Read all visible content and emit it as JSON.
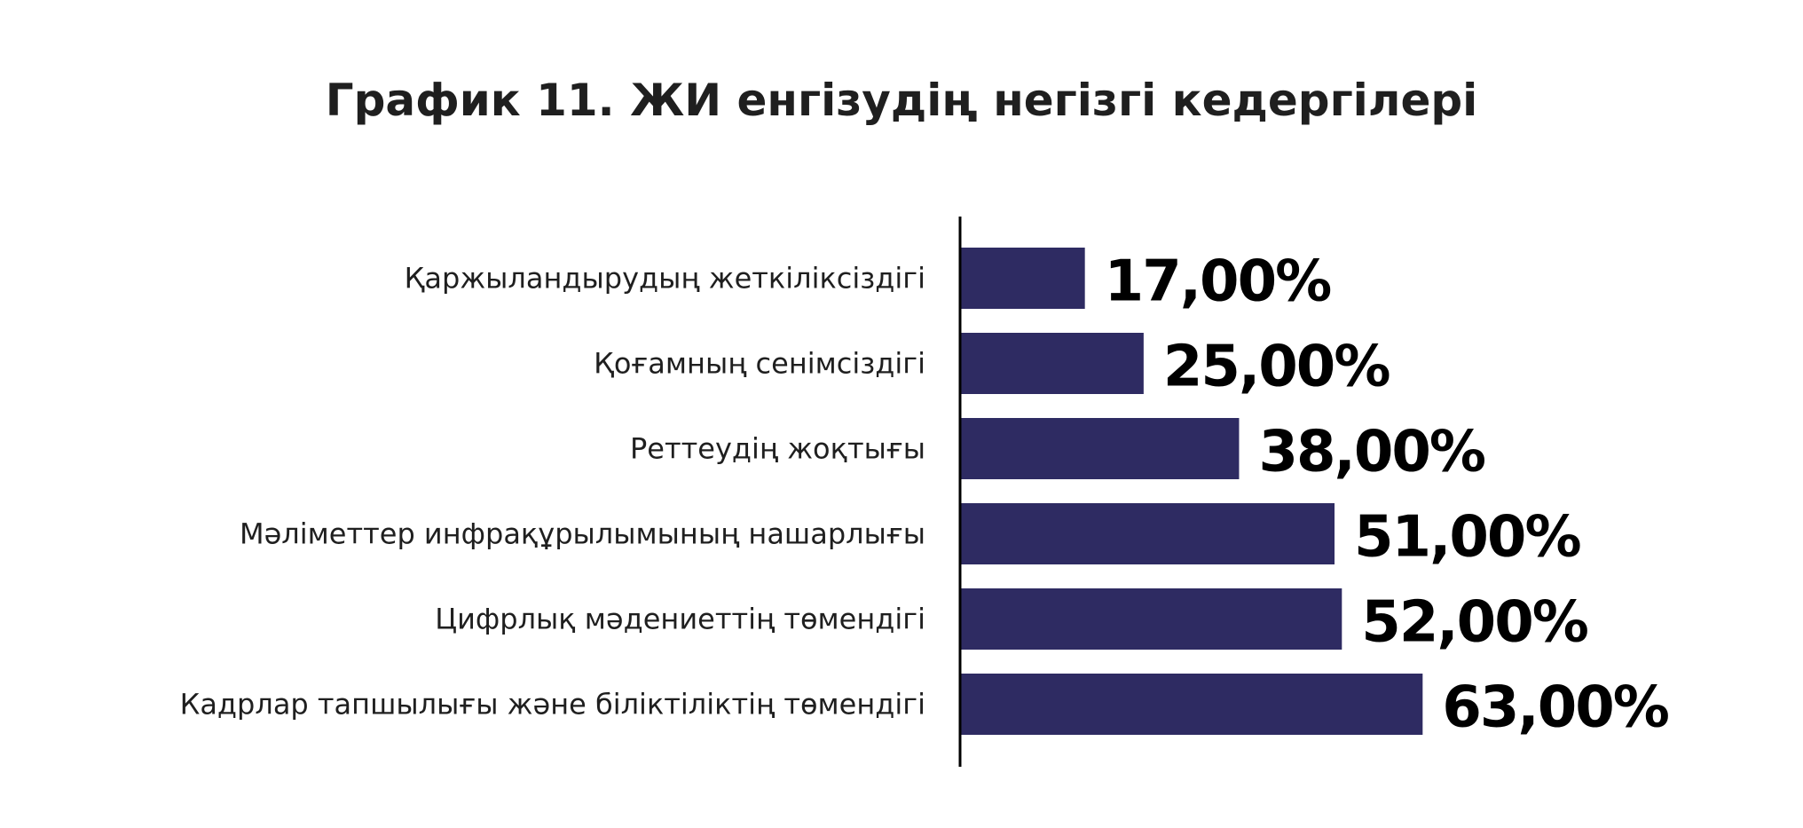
{
  "chart_data": {
    "type": "bar",
    "orientation": "horizontal",
    "title": "График 11. ЖИ енгізудің негізгі кедергілері",
    "categories": [
      "Қаржыландырудың жеткіліксіздігі",
      "Қоғамның сенімсіздігі",
      "Реттеудің жоқтығы",
      "Мәліметтер инфрақұрылымының нашарлығы",
      "Цифрлық мәдениеттің төмендігі",
      "Кадрлар тапшылығы және біліктіліктің төмендігі"
    ],
    "values": [
      17,
      25,
      38,
      51,
      52,
      63
    ],
    "value_labels": [
      "17,00%",
      "25,00%",
      "38,00%",
      "51,00%",
      "52,00%",
      "63,00%"
    ],
    "unit": "%",
    "bar_color": "#2e2b62",
    "grid": false,
    "legend": false
  }
}
